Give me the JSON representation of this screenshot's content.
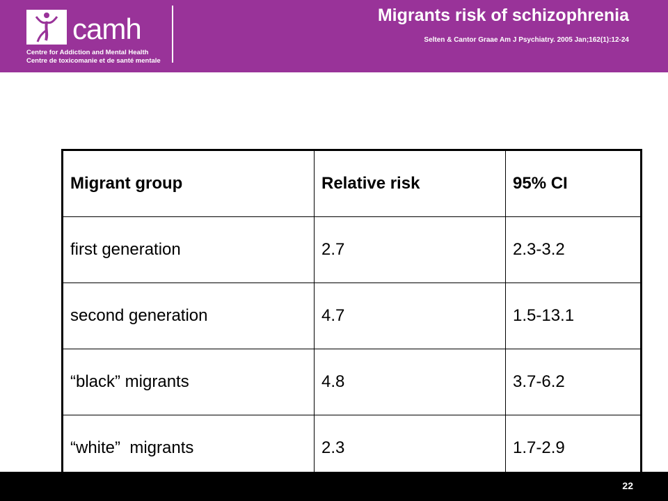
{
  "header": {
    "title": "Migrants risk of schizophrenia",
    "citation": "Selten & Cantor Graae Am J Psychiatry. 2005 Jan;162(1):12-24",
    "logo": {
      "wordmark": "camh",
      "line1": "Centre for Addiction and Mental Health",
      "line2": "Centre de toxicomanie et de santé mentale"
    },
    "colors": {
      "band": "#993399",
      "text": "#ffffff"
    }
  },
  "table": {
    "headers": [
      "Migrant group",
      "Relative risk",
      "95% CI"
    ],
    "rows": [
      [
        "first generation",
        "2.7",
        "2.3-3.2"
      ],
      [
        "second generation",
        "4.7",
        "1.5-13.1"
      ],
      [
        "“black” migrants",
        "4.8",
        "3.7-6.2"
      ],
      [
        "“white”  migrants",
        "2.3",
        "1.7-2.9"
      ]
    ]
  },
  "footer": {
    "page_number": "22"
  }
}
